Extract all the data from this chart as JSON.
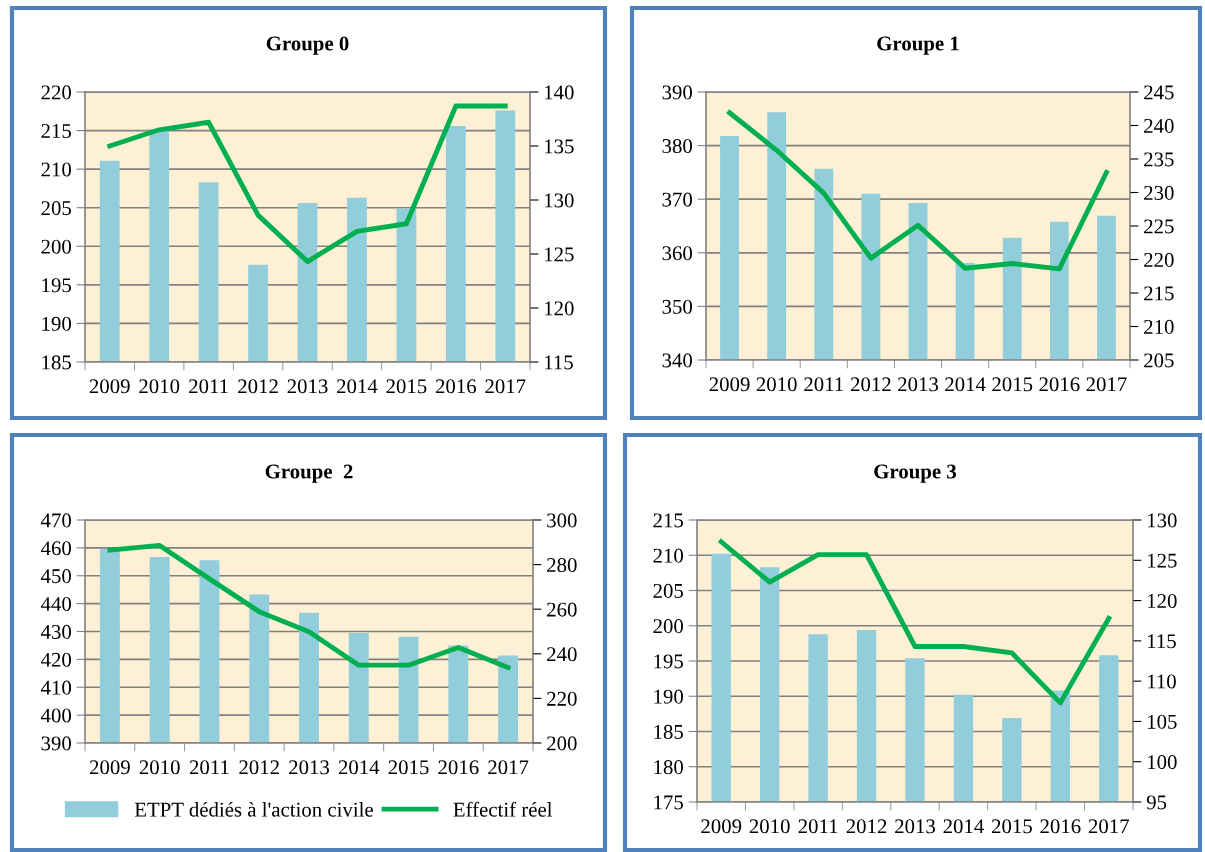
{
  "chart_data": [
    {
      "type": "bar",
      "title": "Groupe 0",
      "categories": [
        "2009",
        "2010",
        "2011",
        "2012",
        "2013",
        "2014",
        "2015",
        "2016",
        "2017"
      ],
      "ylim": [
        185,
        220
      ],
      "yticks": [
        185,
        190,
        195,
        200,
        205,
        210,
        215,
        220
      ],
      "y2lim": [
        115,
        140
      ],
      "y2ticks": [
        115,
        120,
        125,
        130,
        135,
        140
      ],
      "grid": "y",
      "legend": false,
      "series": [
        {
          "color": "#92cddc",
          "values": [
            211.1,
            215.2,
            208.3,
            197.6,
            205.6,
            206.3,
            204.9,
            215.6,
            217.6
          ]
        },
        {
          "type": "line",
          "axis": "y2",
          "color": "#00b050",
          "values": [
            135.0,
            136.5,
            137.2,
            128.6,
            124.3,
            127.1,
            127.8,
            138.7,
            138.7
          ]
        }
      ]
    },
    {
      "type": "bar",
      "title": "Groupe 1",
      "categories": [
        "2009",
        "2010",
        "2011",
        "2012",
        "2013",
        "2014",
        "2015",
        "2016",
        "2017"
      ],
      "ylim": [
        340,
        390
      ],
      "yticks": [
        340,
        350,
        360,
        370,
        380,
        390
      ],
      "y2lim": [
        205,
        245
      ],
      "y2ticks": [
        205,
        210,
        215,
        220,
        225,
        230,
        235,
        240,
        245
      ],
      "grid": "y",
      "legend": false,
      "series": [
        {
          "color": "#92cddc",
          "values": [
            381.8,
            386.2,
            375.7,
            371.0,
            369.3,
            358.1,
            362.8,
            365.8,
            366.9
          ]
        },
        {
          "type": "line",
          "axis": "y2",
          "color": "#00b050",
          "values": [
            241.9,
            236.3,
            229.9,
            220.2,
            225.1,
            218.7,
            219.4,
            218.6,
            233.0
          ]
        }
      ]
    },
    {
      "type": "bar",
      "title": "Groupe  2",
      "categories": [
        "2009",
        "2010",
        "2011",
        "2012",
        "2013",
        "2014",
        "2015",
        "2016",
        "2017"
      ],
      "ylim": [
        390,
        470
      ],
      "yticks": [
        390,
        400,
        410,
        420,
        430,
        440,
        450,
        460,
        470
      ],
      "y2lim": [
        200,
        300
      ],
      "y2ticks": [
        200,
        220,
        240,
        260,
        280,
        300
      ],
      "grid": "y",
      "legend": "bottom",
      "series": [
        {
          "name": "ETPT dédiés à l'action civile",
          "color": "#92cddc",
          "values": [
            459.6,
            456.7,
            455.6,
            443.3,
            436.7,
            429.5,
            428.1,
            425.0,
            421.4
          ]
        },
        {
          "name": "Effectif réel",
          "type": "line",
          "axis": "y2",
          "color": "#00b050",
          "values": [
            286.5,
            288.6,
            273.6,
            258.9,
            249.9,
            234.9,
            234.9,
            242.8,
            233.8
          ]
        }
      ]
    },
    {
      "type": "bar",
      "title": "Groupe 3",
      "categories": [
        "2009",
        "2010",
        "2011",
        "2012",
        "2013",
        "2014",
        "2015",
        "2016",
        "2017"
      ],
      "ylim": [
        175,
        215
      ],
      "yticks": [
        175,
        180,
        185,
        190,
        195,
        200,
        205,
        210,
        215
      ],
      "y2lim": [
        95,
        130
      ],
      "y2ticks": [
        95,
        100,
        105,
        110,
        115,
        120,
        125,
        130
      ],
      "grid": "y",
      "legend": false,
      "series": [
        {
          "color": "#92cddc",
          "values": [
            210.2,
            208.3,
            198.8,
            199.4,
            195.4,
            190.2,
            186.9,
            190.8,
            195.8
          ]
        },
        {
          "type": "line",
          "axis": "y2",
          "color": "#00b050",
          "values": [
            127.3,
            122.3,
            125.7,
            125.7,
            114.3,
            114.3,
            113.5,
            107.3,
            117.8
          ]
        }
      ]
    }
  ]
}
